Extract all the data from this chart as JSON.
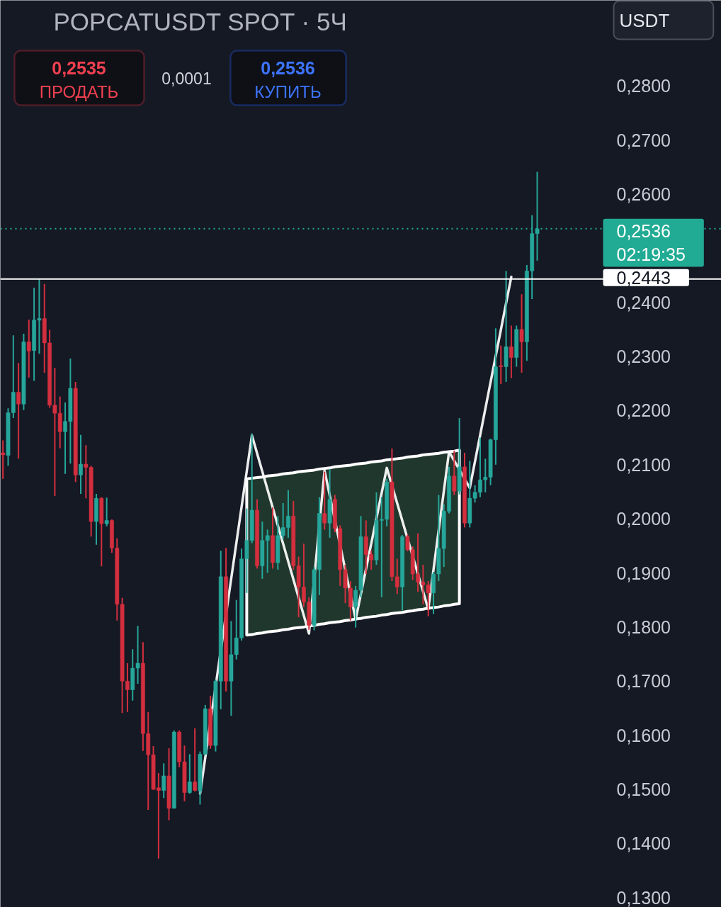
{
  "chart_data": {
    "type": "candlestick",
    "title": "POPCATUSDT SPOT · 5Ч",
    "categories": [
      null,
      null,
      null,
      null,
      null,
      null,
      null,
      null,
      null,
      null,
      null,
      null,
      null,
      null,
      null,
      null,
      null,
      null,
      null,
      null,
      null,
      null,
      null,
      null,
      null,
      null,
      null,
      null,
      null,
      null,
      null,
      null,
      null,
      null,
      null,
      null,
      null,
      null,
      null,
      null,
      null,
      null,
      null,
      null,
      null,
      null,
      null,
      null,
      null,
      null,
      null,
      null,
      null,
      null,
      null,
      null,
      null,
      null,
      null,
      null,
      null,
      null,
      null,
      null,
      null,
      null,
      null,
      null,
      null,
      null,
      null,
      null,
      null,
      null,
      null,
      null,
      null,
      null,
      null,
      null,
      null,
      null,
      null,
      null,
      null,
      null,
      null,
      null,
      null,
      null,
      null,
      null,
      null,
      null,
      null,
      null,
      null,
      null,
      null,
      null,
      null,
      null,
      null,
      null,
      null,
      null,
      null,
      null,
      null,
      null,
      null,
      null,
      null,
      null,
      null,
      null,
      null,
      null,
      null,
      null,
      null,
      null,
      null,
      null,
      null,
      null,
      null,
      null,
      null,
      null,
      null,
      null,
      null,
      null,
      null,
      null,
      null,
      null,
      null
    ],
    "ohlc": [
      [
        0.2122,
        0.2145,
        0.2074,
        0.2118
      ],
      [
        0.2117,
        0.2204,
        0.2098,
        0.2196
      ],
      [
        0.2196,
        0.2339,
        0.2186,
        0.2234
      ],
      [
        0.2234,
        0.2288,
        0.2111,
        0.2212
      ],
      [
        0.2212,
        0.2342,
        0.2201,
        0.2327
      ],
      [
        0.2327,
        0.2368,
        0.2261,
        0.231
      ],
      [
        0.2311,
        0.2427,
        0.2255,
        0.2367
      ],
      [
        0.2367,
        0.2443,
        0.2305,
        0.237
      ],
      [
        0.237,
        0.2434,
        0.227,
        0.2325
      ],
      [
        0.2325,
        0.2349,
        0.2205,
        0.221
      ],
      [
        0.221,
        0.2279,
        0.2042,
        0.2195
      ],
      [
        0.2195,
        0.2226,
        0.213,
        0.2161
      ],
      [
        0.2161,
        0.2215,
        0.2083,
        0.218
      ],
      [
        0.218,
        0.2296,
        0.2102,
        0.2241
      ],
      [
        0.2241,
        0.2253,
        0.2068,
        0.2081
      ],
      [
        0.2081,
        0.2155,
        0.2046,
        0.2101
      ],
      [
        0.2101,
        0.2136,
        0.2038,
        0.2095
      ],
      [
        0.2095,
        0.2098,
        0.1967,
        0.1995
      ],
      [
        0.1995,
        0.2046,
        0.1952,
        0.2038
      ],
      [
        0.2038,
        0.204,
        0.1912,
        0.1991
      ],
      [
        0.1991,
        0.2039,
        0.1986,
        0.1997
      ],
      [
        0.1997,
        0.1999,
        0.1937,
        0.1946
      ],
      [
        0.1946,
        0.1964,
        0.1812,
        0.1842
      ],
      [
        0.1842,
        0.1854,
        0.1641,
        0.17
      ],
      [
        0.17,
        0.1733,
        0.1643,
        0.1684
      ],
      [
        0.1684,
        0.1759,
        0.1664,
        0.1724
      ],
      [
        0.1724,
        0.1802,
        0.1695,
        0.1733
      ],
      [
        0.1733,
        0.1772,
        0.1571,
        0.1603
      ],
      [
        0.1603,
        0.1643,
        0.1462,
        0.1564
      ],
      [
        0.1564,
        0.158,
        0.1499,
        0.15
      ],
      [
        0.1503,
        0.153,
        0.1372,
        0.1498
      ],
      [
        0.1498,
        0.1548,
        0.1484,
        0.1525
      ],
      [
        0.1525,
        0.1576,
        0.1443,
        0.1465
      ],
      [
        0.1465,
        0.1609,
        0.1465,
        0.1606
      ],
      [
        0.1606,
        0.1609,
        0.1541,
        0.1551
      ],
      [
        0.1551,
        0.1581,
        0.1478,
        0.1494
      ],
      [
        0.1494,
        0.1565,
        0.1492,
        0.1514
      ],
      [
        0.1514,
        0.1613,
        0.1496,
        0.1498
      ],
      [
        0.1497,
        0.157,
        0.1472,
        0.1565
      ],
      [
        0.1565,
        0.1656,
        0.1564,
        0.1649
      ],
      [
        0.1649,
        0.1673,
        0.1575,
        0.1581
      ],
      [
        0.1581,
        0.1703,
        0.157,
        0.17
      ],
      [
        0.17,
        0.1941,
        0.1648,
        0.1893
      ],
      [
        0.1893,
        0.1946,
        0.1681,
        0.17
      ],
      [
        0.17,
        0.1811,
        0.1636,
        0.1749
      ],
      [
        0.1749,
        0.185,
        0.174,
        0.178
      ],
      [
        0.178,
        0.1945,
        0.1775,
        0.1926
      ],
      [
        0.1926,
        0.2019,
        0.1863,
        0.196
      ],
      [
        0.196,
        0.2158,
        0.1955,
        0.2016
      ],
      [
        0.2016,
        0.2036,
        0.1908,
        0.1913
      ],
      [
        0.1913,
        0.1995,
        0.1889,
        0.196
      ],
      [
        0.196,
        0.198,
        0.19,
        0.1969
      ],
      [
        0.1969,
        0.2021,
        0.1908,
        0.1919
      ],
      [
        0.1919,
        0.2005,
        0.1906,
        0.1969
      ],
      [
        0.1969,
        0.2029,
        0.1962,
        0.1984
      ],
      [
        0.1984,
        0.2053,
        0.1965,
        0.2005
      ],
      [
        0.2005,
        0.2033,
        0.1906,
        0.1913
      ],
      [
        0.1913,
        0.193,
        0.1818,
        0.1874
      ],
      [
        0.1874,
        0.1954,
        0.1837,
        0.1846
      ],
      [
        0.1846,
        0.1855,
        0.1795,
        0.1803
      ],
      [
        0.1803,
        0.1911,
        0.1794,
        0.1906
      ],
      [
        0.1906,
        0.204,
        0.1859,
        0.201
      ],
      [
        0.201,
        0.2087,
        0.198,
        0.1992
      ],
      [
        0.1992,
        0.2092,
        0.1965,
        0.2036
      ],
      [
        0.2036,
        0.2044,
        0.1975,
        0.1982
      ],
      [
        0.1982,
        0.1988,
        0.1876,
        0.1906
      ],
      [
        0.1906,
        0.1915,
        0.1844,
        0.1872
      ],
      [
        0.1872,
        0.1885,
        0.1812,
        0.1837
      ],
      [
        0.1837,
        0.1876,
        0.1799,
        0.1868
      ],
      [
        0.1868,
        0.2005,
        0.1855,
        0.1967
      ],
      [
        0.1967,
        0.1997,
        0.1898,
        0.1934
      ],
      [
        0.1934,
        0.1941,
        0.1906,
        0.1924
      ],
      [
        0.1924,
        0.2049,
        0.1915,
        0.1997
      ],
      [
        0.1997,
        0.204,
        0.1855,
        0.1999
      ],
      [
        0.1999,
        0.2074,
        0.1986,
        0.2068
      ],
      [
        0.2068,
        0.213,
        0.1885,
        0.1893
      ],
      [
        0.1893,
        0.1926,
        0.1861,
        0.1874
      ],
      [
        0.1874,
        0.197,
        0.1831,
        0.1967
      ],
      [
        0.1967,
        0.1971,
        0.194,
        0.1943
      ],
      [
        0.1943,
        0.1949,
        0.1887,
        0.1898
      ],
      [
        0.1898,
        0.1973,
        0.1865,
        0.1883
      ],
      [
        0.1883,
        0.1915,
        0.1842,
        0.1878
      ],
      [
        0.1878,
        0.1885,
        0.182,
        0.1863
      ],
      [
        0.1863,
        0.1902,
        0.1824,
        0.1898
      ],
      [
        0.1898,
        0.2044,
        0.1885,
        0.1945
      ],
      [
        0.1945,
        0.2027,
        0.1911,
        0.2014
      ],
      [
        0.2014,
        0.2096,
        0.201,
        0.2079
      ],
      [
        0.2079,
        0.2126,
        0.2044,
        0.2051
      ],
      [
        0.2051,
        0.2186,
        0.2045,
        0.2096
      ],
      [
        0.2096,
        0.2122,
        0.1984,
        0.1992
      ],
      [
        0.1992,
        0.2107,
        0.1984,
        0.2038
      ],
      [
        0.2038,
        0.2062,
        0.203,
        0.2049
      ],
      [
        0.2049,
        0.215,
        0.204,
        0.2072
      ],
      [
        0.2072,
        0.2111,
        0.2049,
        0.2077
      ],
      [
        0.2077,
        0.2148,
        0.2062,
        0.2146
      ],
      [
        0.2146,
        0.2352,
        0.21,
        0.2281
      ],
      [
        0.2283,
        0.232,
        0.2249,
        0.2281
      ],
      [
        0.2281,
        0.2458,
        0.2253,
        0.2318
      ],
      [
        0.2318,
        0.2357,
        0.226,
        0.2298
      ],
      [
        0.2298,
        0.2357,
        0.2281,
        0.235
      ],
      [
        0.235,
        0.2415,
        0.227,
        0.2327
      ],
      [
        0.2327,
        0.2469,
        0.2292,
        0.2458
      ],
      [
        0.2458,
        0.2561,
        0.2406,
        0.2527
      ],
      [
        0.2527,
        0.2641,
        0.2477,
        0.2536
      ],
      null,
      null,
      null,
      null,
      null,
      null,
      null,
      null,
      null,
      null,
      null,
      null,
      null,
      null,
      null,
      null,
      null,
      null,
      null,
      null,
      null,
      null,
      null,
      null,
      null,
      null,
      null,
      null,
      null,
      null,
      null,
      null,
      null,
      null,
      null
    ],
    "colors": [
      "#d32f3f",
      "#26a69a",
      "#26a69a",
      "#d32f3f",
      "#26a69a",
      "#d32f3f",
      "#26a69a",
      "#26a69a",
      "#d32f3f",
      "#d32f3f",
      "#d32f3f",
      "#d32f3f",
      "#26a69a",
      "#26a69a",
      "#d32f3f",
      "#26a69a",
      "#d32f3f",
      "#d32f3f",
      "#26a69a",
      "#d32f3f",
      "#26a69a",
      "#d32f3f",
      "#d32f3f",
      "#d32f3f",
      "#d32f3f",
      "#26a69a",
      "#26a69a",
      "#d32f3f",
      "#d32f3f",
      "#d32f3f",
      "#d32f3f",
      "#26a69a",
      "#d32f3f",
      "#26a69a",
      "#d32f3f",
      "#d32f3f",
      "#26a69a",
      "#d32f3f",
      "#26a69a",
      "#26a69a",
      "#d32f3f",
      "#26a69a",
      "#26a69a",
      "#d32f3f",
      "#26a69a",
      "#26a69a",
      "#26a69a",
      "#26a69a",
      "#26a69a",
      "#d32f3f",
      "#26a69a",
      "#26a69a",
      "#d32f3f",
      "#26a69a",
      "#26a69a",
      "#26a69a",
      "#d32f3f",
      "#d32f3f",
      "#d32f3f",
      "#d32f3f",
      "#26a69a",
      "#26a69a",
      "#d32f3f",
      "#26a69a",
      "#d32f3f",
      "#d32f3f",
      "#d32f3f",
      "#d32f3f",
      "#26a69a",
      "#26a69a",
      "#d32f3f",
      "#d32f3f",
      "#26a69a",
      "#26a69a",
      "#26a69a",
      "#d32f3f",
      "#d32f3f",
      "#26a69a",
      "#d32f3f",
      "#d32f3f",
      "#d32f3f",
      "#d32f3f",
      "#d32f3f",
      "#26a69a",
      "#26a69a",
      "#26a69a",
      "#26a69a",
      "#d32f3f",
      "#26a69a",
      "#d32f3f",
      "#26a69a",
      "#26a69a",
      "#26a69a",
      "#26a69a",
      "#26a69a",
      "#26a69a",
      "#d32f3f",
      "#26a69a",
      "#d32f3f",
      "#26a69a",
      "#d32f3f",
      "#26a69a",
      "#26a69a",
      "#26a69a",
      null,
      null,
      null,
      null,
      null,
      null,
      null,
      null,
      null,
      null,
      null,
      null,
      null,
      null,
      null,
      null,
      null,
      null,
      null,
      null,
      null,
      null,
      null,
      null,
      null,
      null,
      null,
      null,
      null,
      null,
      null,
      null,
      null,
      null,
      null
    ],
    "series": [
      {
        "type": "line",
        "color": "#ffffff",
        "values": [
          null,
          null,
          null,
          null,
          null,
          null,
          null,
          null,
          null,
          null,
          null,
          null,
          null,
          null,
          null,
          null,
          null,
          null,
          null,
          null,
          null,
          null,
          null,
          null,
          null,
          null,
          null,
          null,
          null,
          null,
          null,
          null,
          null,
          null,
          null,
          null,
          null,
          null,
          0.1492,
          null,
          null,
          null,
          null,
          null,
          null,
          null,
          null,
          null,
          0.2154,
          null,
          null,
          null,
          null,
          null,
          null,
          null,
          null,
          null,
          null,
          0.1788,
          null,
          null,
          0.2089,
          null,
          null,
          null,
          null,
          null,
          0.1814,
          null,
          null,
          null,
          null,
          null,
          0.2094,
          null,
          null,
          null,
          null,
          null,
          null,
          null,
          0.1833,
          null,
          null,
          null,
          0.2124,
          null,
          null,
          null,
          0.2057,
          null,
          null,
          null,
          null,
          null,
          null,
          null,
          0.2447,
          null,
          null,
          null,
          null,
          null,
          null,
          null,
          null,
          null,
          null,
          null,
          null,
          null,
          null,
          null,
          null,
          null,
          null,
          null,
          null,
          null,
          null,
          null,
          null,
          null,
          null,
          null,
          null,
          null,
          null,
          null,
          null,
          null,
          null,
          null,
          null,
          null,
          null,
          null,
          null
        ],
        "upper": [
          null,
          null,
          null,
          null,
          null,
          null,
          null,
          null,
          null,
          null,
          null,
          null,
          null,
          null,
          null,
          null,
          null,
          null,
          null,
          null,
          null,
          null,
          null,
          null,
          null,
          null,
          null,
          null,
          null,
          null,
          null,
          null,
          null,
          null,
          null,
          null,
          null,
          null,
          null,
          null,
          null,
          null,
          null,
          null,
          null,
          null,
          null,
          0.2074,
          0.2075,
          0.2076,
          0.2077,
          0.2079,
          0.208,
          0.2081,
          0.2083,
          0.2084,
          0.2085,
          0.2087,
          0.2088,
          0.2089,
          0.209,
          0.2092,
          0.2093,
          0.2094,
          0.2096,
          0.2097,
          0.2098,
          0.2099,
          0.2101,
          0.2102,
          0.2103,
          0.2105,
          0.2106,
          0.2107,
          0.2109,
          0.211,
          0.2111,
          0.2112,
          0.2114,
          0.2115,
          0.2116,
          0.2118,
          0.2119,
          0.212,
          0.2121,
          0.2123,
          0.2124,
          0.2125,
          0.2127,
          null,
          null,
          null,
          null,
          null,
          null,
          null,
          null,
          null,
          null,
          null,
          null,
          null,
          null,
          null,
          null,
          null,
          null,
          null,
          null,
          null,
          null,
          null,
          null,
          null,
          null,
          null,
          null,
          null,
          null,
          null,
          null,
          null,
          null,
          null,
          null,
          null,
          null,
          null,
          null,
          null,
          null,
          null,
          null,
          null,
          null,
          null,
          null,
          null,
          null
        ],
        "lower": [
          null,
          null,
          null,
          null,
          null,
          null,
          null,
          null,
          null,
          null,
          null,
          null,
          null,
          null,
          null,
          null,
          null,
          null,
          null,
          null,
          null,
          null,
          null,
          null,
          null,
          null,
          null,
          null,
          null,
          null,
          null,
          null,
          null,
          null,
          null,
          null,
          null,
          null,
          null,
          null,
          null,
          null,
          null,
          null,
          null,
          null,
          null,
          0.1785,
          0.1786,
          0.1788,
          0.1789,
          0.1791,
          0.1792,
          0.1793,
          0.1795,
          0.1796,
          0.1798,
          0.1799,
          0.18,
          0.1802,
          0.1803,
          0.1805,
          0.1806,
          0.1808,
          0.1809,
          0.181,
          0.1812,
          0.1813,
          0.1815,
          0.1816,
          0.1818,
          0.1819,
          0.182,
          0.1822,
          0.1823,
          0.1825,
          0.1826,
          0.1827,
          0.1829,
          0.183,
          0.1832,
          0.1833,
          0.1835,
          0.1836,
          0.1837,
          0.1839,
          0.184,
          0.1842,
          0.1843,
          null,
          null,
          null,
          null,
          null,
          null,
          null,
          null,
          null,
          null,
          null,
          null,
          null,
          null,
          null,
          null,
          null,
          null,
          null,
          null,
          null,
          null,
          null,
          null,
          null,
          null,
          null,
          null,
          null,
          null,
          null,
          null,
          null,
          null,
          null,
          null,
          null,
          null,
          null,
          null,
          null,
          null,
          null,
          null,
          null,
          null,
          null,
          null,
          null,
          null
        ]
      }
    ],
    "ylim": [
      0.1282,
      0.2958
    ],
    "yticks": [
      {
        "value": 0.13,
        "label": "0,1300"
      },
      {
        "value": 0.14,
        "label": "0,1400"
      },
      {
        "value": 0.15,
        "label": "0,1500"
      },
      {
        "value": 0.16,
        "label": "0,1600"
      },
      {
        "value": 0.17,
        "label": "0,1700"
      },
      {
        "value": 0.18,
        "label": "0,1800"
      },
      {
        "value": 0.19,
        "label": "0,1900"
      },
      {
        "value": 0.2,
        "label": "0,2000"
      },
      {
        "value": 0.21,
        "label": "0,2100"
      },
      {
        "value": 0.22,
        "label": "0,2200"
      },
      {
        "value": 0.23,
        "label": "0,2300"
      },
      {
        "value": 0.24,
        "label": "0,2400"
      },
      {
        "value": 0.26,
        "label": "0,2600"
      },
      {
        "value": 0.27,
        "label": "0,2700"
      },
      {
        "value": 0.28,
        "label": "0,2800"
      }
    ],
    "tick_labels": "y",
    "grid": false,
    "ref_lines": [
      {
        "axis": "y",
        "value": 0.2536,
        "label": "0,2536\n02:19:35",
        "color": "#22ab94",
        "line_style": "dotted"
      },
      {
        "axis": "y",
        "value": 0.2443,
        "label": "0,2443",
        "color": "#ffffff",
        "line_style": "solid"
      }
    ],
    "annotations": [
      "0,2535",
      "ПРОДАТЬ",
      "0,0001",
      "0,2536",
      "КУПИТЬ",
      "USDT"
    ]
  }
}
